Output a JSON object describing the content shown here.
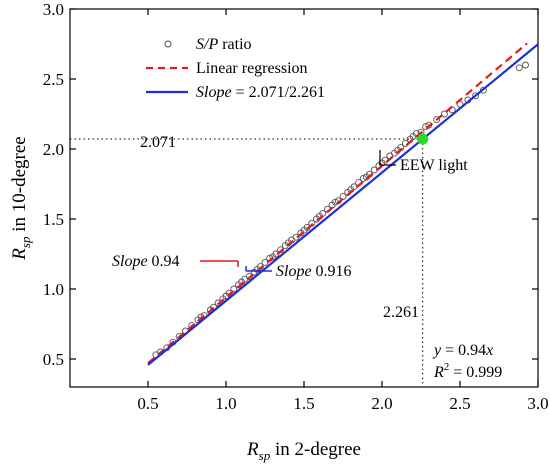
{
  "chart_data": {
    "type": "scatter",
    "xlabel": {
      "main": "R",
      "sub": "sp",
      "rest": " in 2-degree"
    },
    "ylabel": {
      "main": "R",
      "sub": "sp",
      "rest": " in 10-degree"
    },
    "xlim": [
      0.0,
      3.0
    ],
    "ylim": [
      0.3,
      3.0
    ],
    "xticks": [
      "0.5",
      "1.0",
      "1.5",
      "2.0",
      "2.5",
      "3.0"
    ],
    "yticks": [
      "0.5",
      "1.0",
      "1.5",
      "2.0",
      "2.5",
      "3.0"
    ],
    "grid": false,
    "legend_position": "top-left",
    "legend": {
      "scatter": {
        "italic": "S/P",
        "rest": " ratio"
      },
      "regression": {
        "text": "Linear regression"
      },
      "slope_line": {
        "italic": "Slope",
        "rest": " = 2.071/2.261"
      }
    },
    "series": [
      {
        "name": "S/P ratio",
        "kind": "scatter",
        "color": "#555555",
        "points": [
          [
            0.55,
            0.53
          ],
          [
            0.58,
            0.55
          ],
          [
            0.62,
            0.58
          ],
          [
            0.66,
            0.62
          ],
          [
            0.7,
            0.66
          ],
          [
            0.74,
            0.7
          ],
          [
            0.78,
            0.74
          ],
          [
            0.82,
            0.78
          ],
          [
            0.84,
            0.8
          ],
          [
            0.86,
            0.81
          ],
          [
            0.9,
            0.85
          ],
          [
            0.92,
            0.87
          ],
          [
            0.95,
            0.9
          ],
          [
            0.98,
            0.93
          ],
          [
            1.0,
            0.95
          ],
          [
            1.02,
            0.97
          ],
          [
            1.05,
            1.0
          ],
          [
            1.08,
            1.03
          ],
          [
            1.1,
            1.05
          ],
          [
            1.12,
            1.07
          ],
          [
            1.15,
            1.09
          ],
          [
            1.18,
            1.12
          ],
          [
            1.2,
            1.14
          ],
          [
            1.22,
            1.16
          ],
          [
            1.25,
            1.19
          ],
          [
            1.28,
            1.22
          ],
          [
            1.3,
            1.23
          ],
          [
            1.32,
            1.25
          ],
          [
            1.35,
            1.28
          ],
          [
            1.38,
            1.31
          ],
          [
            1.4,
            1.33
          ],
          [
            1.42,
            1.35
          ],
          [
            1.45,
            1.37
          ],
          [
            1.48,
            1.4
          ],
          [
            1.5,
            1.42
          ],
          [
            1.52,
            1.44
          ],
          [
            1.55,
            1.47
          ],
          [
            1.58,
            1.5
          ],
          [
            1.6,
            1.52
          ],
          [
            1.62,
            1.54
          ],
          [
            1.65,
            1.57
          ],
          [
            1.68,
            1.6
          ],
          [
            1.7,
            1.62
          ],
          [
            1.72,
            1.63
          ],
          [
            1.75,
            1.66
          ],
          [
            1.78,
            1.69
          ],
          [
            1.8,
            1.71
          ],
          [
            1.82,
            1.73
          ],
          [
            1.85,
            1.76
          ],
          [
            1.88,
            1.79
          ],
          [
            1.9,
            1.8
          ],
          [
            1.92,
            1.82
          ],
          [
            1.95,
            1.85
          ],
          [
            1.98,
            1.88
          ],
          [
            2.0,
            1.9
          ],
          [
            2.02,
            1.92
          ],
          [
            2.05,
            1.95
          ],
          [
            2.08,
            1.97
          ],
          [
            2.1,
            1.99
          ],
          [
            2.12,
            2.01
          ],
          [
            2.15,
            2.04
          ],
          [
            2.18,
            2.07
          ],
          [
            2.2,
            2.09
          ],
          [
            2.22,
            2.11
          ],
          [
            2.25,
            2.12
          ],
          [
            2.28,
            2.16
          ],
          [
            2.3,
            2.17
          ],
          [
            2.35,
            2.21
          ],
          [
            2.4,
            2.25
          ],
          [
            2.45,
            2.28
          ],
          [
            2.5,
            2.32
          ],
          [
            2.55,
            2.35
          ],
          [
            2.6,
            2.38
          ],
          [
            2.65,
            2.42
          ],
          [
            2.88,
            2.58
          ],
          [
            2.92,
            2.6
          ]
        ]
      },
      {
        "name": "Linear regression",
        "kind": "line",
        "color": "#e31a1c",
        "dash": true,
        "slope": 0.94,
        "x_range": [
          0.5,
          2.93
        ]
      },
      {
        "name": "Slope = 2.071/2.261",
        "kind": "line",
        "color": "#1f2fd6",
        "dash": false,
        "slope": 0.916,
        "x_range": [
          0.5,
          3.0
        ]
      }
    ],
    "eew_point": {
      "x": 2.261,
      "y": 2.071,
      "color": "#22dd22",
      "label": "EEW light"
    },
    "ref_lines": {
      "x_value_label": "2.261",
      "y_value_label": "2.071"
    },
    "annotations": {
      "slope_red": {
        "italic": "Slope",
        "rest": " 0.94",
        "color": "#e31a1c"
      },
      "slope_blue": {
        "italic": "Slope",
        "rest": " 0.916",
        "color": "#1f2fd6"
      },
      "equation": {
        "line1_italic": "y",
        "line1_eq": " = 0.94",
        "line1_x": "x",
        "line2_italic": "R",
        "line2_sup": "2",
        "line2_rest": " = 0.999"
      }
    }
  }
}
